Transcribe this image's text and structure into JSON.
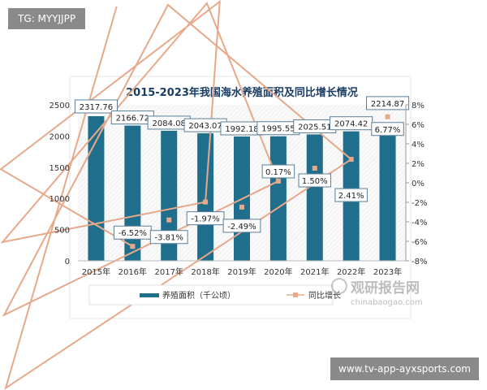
{
  "watermarks": {
    "top_left": "TG: MYYJJPP",
    "bottom_right": "www.tv-app-ayxsports.com"
  },
  "logo": {
    "name": "观研报告网",
    "url_text": "chinabaogao.com"
  },
  "chart_data": {
    "type": "bar+line",
    "title": "2015-2023年我国海水养殖面积及同比增长情况",
    "categories": [
      "2015年",
      "2016年",
      "2017年",
      "2018年",
      "2019年",
      "2020年",
      "2021年",
      "2022年",
      "2023年"
    ],
    "series": [
      {
        "name": "养殖面积（千公顷）",
        "type": "bar",
        "axis": "left",
        "color": "#1f6e8c",
        "values": [
          2317.76,
          2166.72,
          2084.08,
          2043.07,
          1992.18,
          1995.55,
          2025.51,
          2074.42,
          2214.87
        ],
        "labels": [
          "2317.76",
          "2166.72",
          "2084.08",
          "2043.07",
          "1992.18",
          "1995.55",
          "2025.51",
          "2074.42",
          "2214.87"
        ]
      },
      {
        "name": "同比增长",
        "type": "line",
        "axis": "right",
        "color": "#e8a88a",
        "values": [
          null,
          -6.52,
          -3.81,
          -1.97,
          -2.49,
          0.17,
          1.5,
          2.41,
          6.77
        ],
        "labels": [
          "",
          "-6.52%",
          "-3.81%",
          "-1.97%",
          "-2.49%",
          "0.17%",
          "1.50%",
          "2.41%",
          "6.77%"
        ]
      }
    ],
    "y_left": {
      "min": 0,
      "max": 2500,
      "ticks": [
        "0",
        "500",
        "1000",
        "1500",
        "2000",
        "2500"
      ]
    },
    "y_right": {
      "min": -8,
      "max": 8,
      "ticks": [
        "-8%",
        "-6%",
        "-4%",
        "-2%",
        "0%",
        "2%",
        "4%",
        "6%",
        "8%"
      ]
    },
    "legend": "bottom",
    "grid": false
  }
}
